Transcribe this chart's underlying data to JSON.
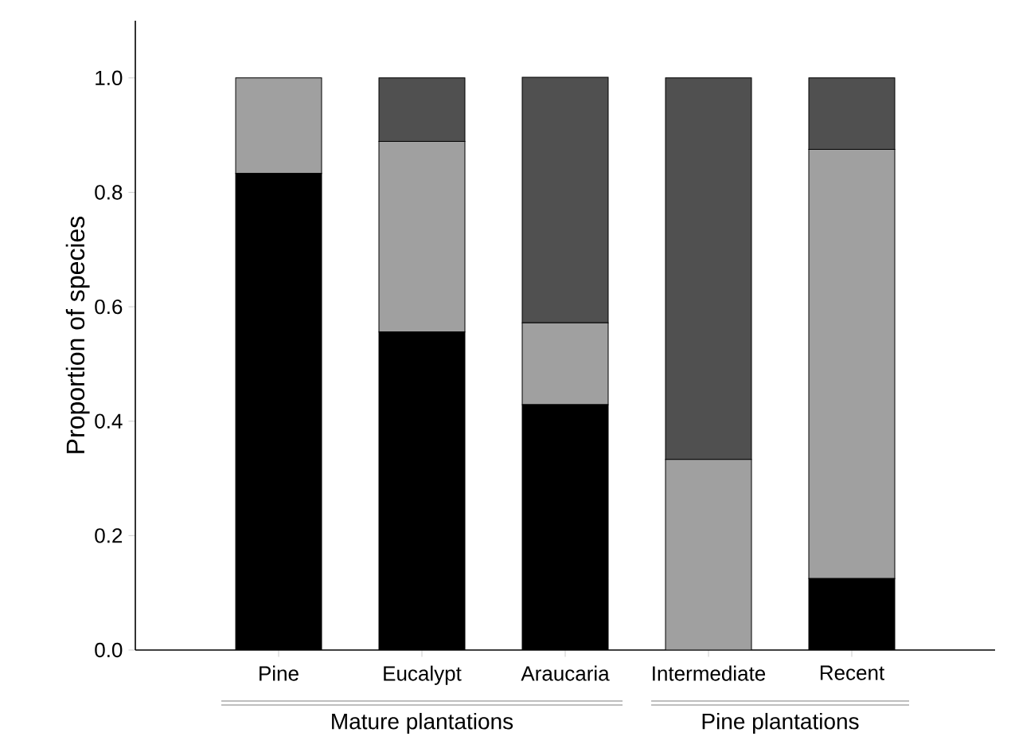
{
  "chart_data": {
    "type": "bar",
    "stacked": true,
    "ylabel": "Proportion of species",
    "categories": [
      "Pine",
      "Eucalypt",
      "Araucaria",
      "Intermediate",
      "Recent"
    ],
    "series": [
      {
        "color": "#000000",
        "values": [
          0.833,
          0.556,
          0.429,
          0,
          0.125
        ]
      },
      {
        "color": "#a0a0a0",
        "values": [
          0.167,
          0.333,
          0.143,
          0.333,
          0.75
        ]
      },
      {
        "color": "#505050",
        "values": [
          0,
          0.111,
          0.429,
          0.667,
          0.125
        ]
      }
    ],
    "ylim": [
      0,
      1.1
    ],
    "yticks": [
      {
        "value": 0,
        "label": "0.0"
      },
      {
        "value": 0.2,
        "label": "0.2"
      },
      {
        "value": 0.4,
        "label": "0.4"
      },
      {
        "value": 0.6,
        "label": "0.6"
      },
      {
        "value": 0.8,
        "label": "0.8"
      },
      {
        "value": 1,
        "label": "1.0"
      }
    ],
    "annotations": [
      "Mature plantations",
      "Pine plantations"
    ],
    "grid": false
  }
}
